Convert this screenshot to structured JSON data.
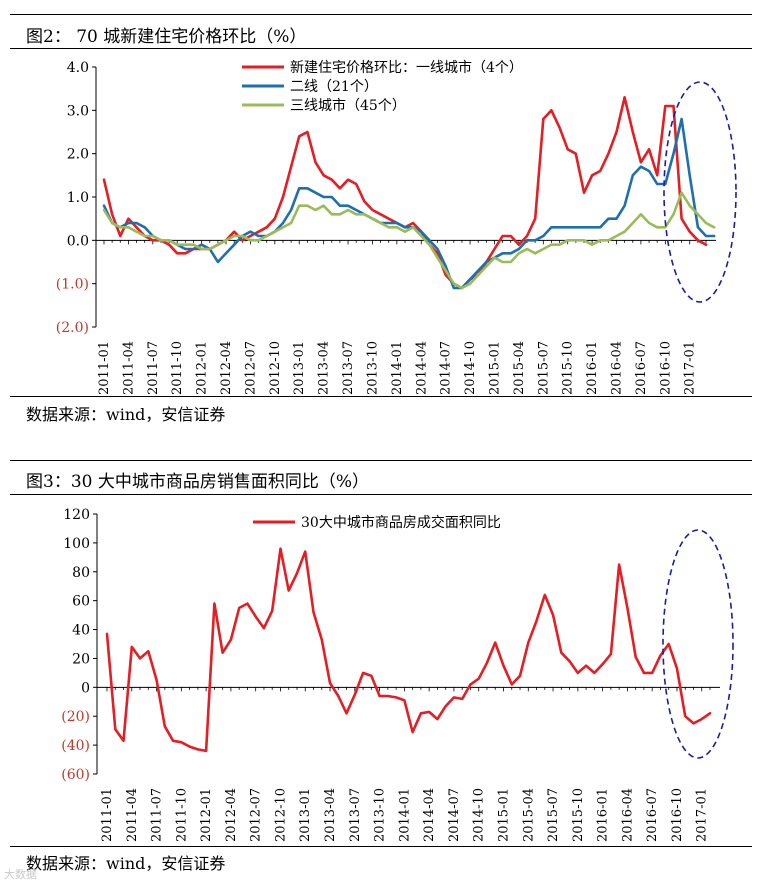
{
  "figure2": {
    "caption": "图2：  70 城新建住宅价格环比（%）",
    "source": "数据来源：wind，安信证券"
  },
  "figure3": {
    "caption": "图3：30 大中城市商品房销售面积同比（%）",
    "source": "数据来源：wind，安信证券"
  },
  "watermark": "大数据",
  "chart_data": [
    {
      "type": "line",
      "title": "70 城新建住宅价格环比（%）",
      "ylim": [
        -2.0,
        4.0
      ],
      "yticks": [
        4.0,
        3.0,
        2.0,
        1.0,
        0.0,
        -1.0,
        -2.0
      ],
      "ytick_labels": [
        "4.0",
        "3.0",
        "2.0",
        "1.0",
        "0.0",
        "(1.0)",
        "(2.0)"
      ],
      "x_tick_labels": [
        "2011-01",
        "2011-04",
        "2011-07",
        "2011-10",
        "2012-01",
        "2012-04",
        "2012-07",
        "2012-10",
        "2013-01",
        "2013-04",
        "2013-07",
        "2013-10",
        "2014-01",
        "2014-04",
        "2014-07",
        "2014-10",
        "2015-01",
        "2015-04",
        "2015-07",
        "2015-10",
        "2016-01",
        "2016-04",
        "2016-07",
        "2016-10",
        "2017-01"
      ],
      "legend_position": "top-center",
      "series": [
        {
          "name": "新建住宅价格环比：一线城市（4个）",
          "color": "#e31e24",
          "values": [
            1.4,
            0.6,
            0.1,
            0.5,
            0.3,
            0.1,
            0.0,
            0.0,
            -0.1,
            -0.3,
            -0.3,
            -0.2,
            -0.2,
            -0.2,
            -0.1,
            0.0,
            0.2,
            0.0,
            0.1,
            0.2,
            0.3,
            0.5,
            1.0,
            1.7,
            2.4,
            2.5,
            1.8,
            1.5,
            1.4,
            1.2,
            1.4,
            1.3,
            0.9,
            0.7,
            0.6,
            0.5,
            0.4,
            0.3,
            0.4,
            0.2,
            -0.1,
            -0.3,
            -0.8,
            -1.0,
            -1.1,
            -0.9,
            -0.8,
            -0.5,
            -0.2,
            0.1,
            0.1,
            -0.1,
            0.1,
            0.5,
            2.8,
            3.0,
            2.6,
            2.1,
            2.0,
            1.1,
            1.5,
            1.6,
            2.0,
            2.5,
            3.3,
            2.5,
            1.8,
            2.1,
            1.5,
            3.1,
            3.1,
            0.5,
            0.2,
            0.0,
            -0.1
          ]
        },
        {
          "name": "二线（21个）",
          "color": "#1f6fae",
          "values": [
            0.8,
            0.4,
            0.3,
            0.4,
            0.4,
            0.3,
            0.1,
            0.0,
            0.0,
            -0.1,
            -0.2,
            -0.2,
            -0.1,
            -0.2,
            -0.5,
            -0.3,
            -0.1,
            0.1,
            0.2,
            0.1,
            0.1,
            0.2,
            0.4,
            0.7,
            1.2,
            1.2,
            1.1,
            1.0,
            1.0,
            0.8,
            0.8,
            0.7,
            0.6,
            0.5,
            0.4,
            0.4,
            0.4,
            0.3,
            0.3,
            0.2,
            0.0,
            -0.2,
            -0.6,
            -1.1,
            -1.1,
            -0.9,
            -0.7,
            -0.5,
            -0.4,
            -0.3,
            -0.3,
            -0.2,
            0.0,
            0.0,
            0.1,
            0.3,
            0.3,
            0.3,
            0.3,
            0.3,
            0.3,
            0.3,
            0.5,
            0.5,
            0.8,
            1.5,
            1.7,
            1.6,
            1.3,
            1.3,
            2.0,
            2.8,
            1.5,
            0.3,
            0.1,
            0.1
          ]
        },
        {
          "name": "三线城市（45个）",
          "color": "#9bbb59",
          "values": [
            0.7,
            0.4,
            0.3,
            0.3,
            0.2,
            0.1,
            0.1,
            0.0,
            0.0,
            -0.1,
            -0.1,
            -0.1,
            -0.2,
            -0.2,
            -0.1,
            0.0,
            0.1,
            0.1,
            0.0,
            0.0,
            0.1,
            0.2,
            0.3,
            0.4,
            0.8,
            0.8,
            0.7,
            0.8,
            0.6,
            0.6,
            0.7,
            0.6,
            0.6,
            0.5,
            0.4,
            0.3,
            0.3,
            0.2,
            0.3,
            0.1,
            -0.1,
            -0.4,
            -0.7,
            -1.0,
            -1.1,
            -1.0,
            -0.8,
            -0.6,
            -0.4,
            -0.5,
            -0.5,
            -0.3,
            -0.2,
            -0.3,
            -0.2,
            -0.1,
            -0.1,
            0.0,
            0.0,
            0.0,
            -0.1,
            0.0,
            0.0,
            0.1,
            0.2,
            0.4,
            0.6,
            0.4,
            0.3,
            0.3,
            0.6,
            1.1,
            0.8,
            0.6,
            0.4,
            0.3
          ]
        }
      ],
      "annotation": "dashed ellipse highlighting 2016-10 to 2017-01"
    },
    {
      "type": "line",
      "title": "30 大中城市商品房销售面积同比（%）",
      "ylim": [
        -60,
        120
      ],
      "yticks": [
        120,
        100,
        80,
        60,
        40,
        20,
        0,
        -20,
        -40,
        -60
      ],
      "ytick_labels": [
        "120",
        "100",
        "80",
        "60",
        "40",
        "20",
        "0",
        "(20)",
        "(40)",
        "(60)"
      ],
      "x_tick_labels": [
        "2011-01",
        "2011-04",
        "2011-07",
        "2011-10",
        "2012-01",
        "2012-04",
        "2012-07",
        "2012-10",
        "2013-01",
        "2013-04",
        "2013-07",
        "2013-10",
        "2014-01",
        "2014-04",
        "2014-07",
        "2014-10",
        "2015-01",
        "2015-04",
        "2015-07",
        "2015-10",
        "2016-01",
        "2016-04",
        "2016-07",
        "2016-10",
        "2017-01"
      ],
      "legend_position": "top-center",
      "series": [
        {
          "name": "30大中城市商品房成交面积同比",
          "color": "#e31e24",
          "values": [
            37,
            -29,
            -37,
            28,
            20,
            25,
            5,
            -27,
            -37,
            -38,
            -41,
            -43,
            -44,
            58,
            24,
            33,
            55,
            58,
            49,
            41,
            53,
            96,
            67,
            79,
            94,
            52,
            33,
            3,
            -6,
            -18,
            -5,
            10,
            8,
            -6,
            -6,
            -7,
            -9,
            -31,
            -18,
            -17,
            -22,
            -13,
            -7,
            -8,
            2,
            6,
            17,
            31,
            15,
            2,
            8,
            31,
            46,
            64,
            50,
            24,
            18,
            10,
            15,
            10,
            16,
            23,
            85,
            55,
            21,
            10,
            10,
            22,
            30,
            13,
            -20,
            -25,
            -22,
            -18
          ]
        }
      ],
      "annotation": "dashed ellipse highlighting 2016-10 to 2017-01"
    }
  ]
}
